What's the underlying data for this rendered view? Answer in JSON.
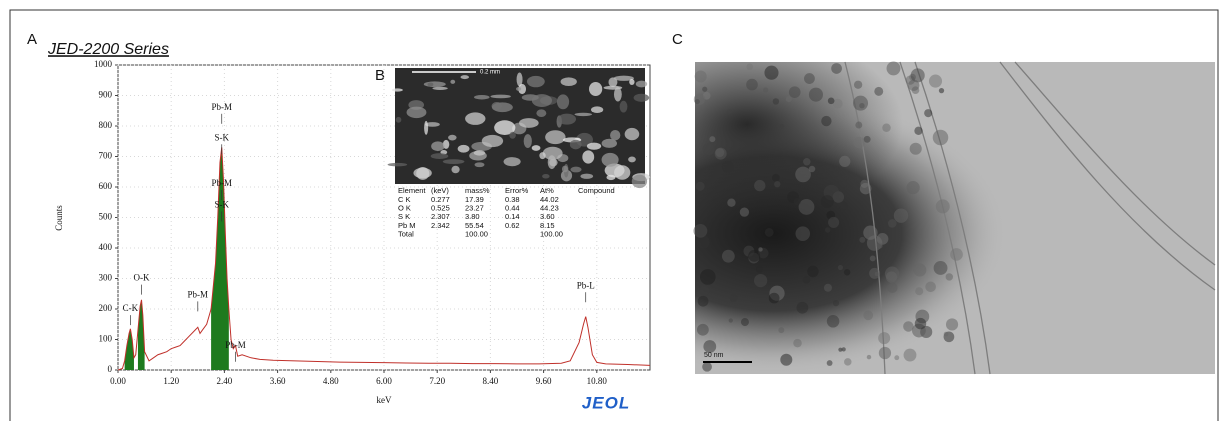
{
  "panels": {
    "a": "A",
    "b": "B",
    "c": "C"
  },
  "chart_data": {
    "type": "line",
    "title": "JED-2200 Series",
    "x_label": "keV",
    "y_label": "Counts",
    "x": [
      0,
      0.1,
      0.15,
      0.2,
      0.25,
      0.28,
      0.32,
      0.36,
      0.4,
      0.45,
      0.5,
      0.53,
      0.56,
      0.6,
      0.7,
      0.8,
      0.9,
      1.0,
      1.1,
      1.2,
      1.3,
      1.4,
      1.5,
      1.6,
      1.7,
      1.8,
      1.85,
      1.9,
      2.0,
      2.1,
      2.2,
      2.25,
      2.3,
      2.34,
      2.38,
      2.42,
      2.46,
      2.5,
      2.55,
      2.6,
      2.65,
      2.7,
      2.8,
      3.0,
      3.2,
      3.5,
      4.0,
      4.5,
      5.0,
      5.5,
      6.0,
      6.5,
      7.0,
      7.5,
      8.0,
      8.5,
      9.0,
      9.5,
      10.0,
      10.2,
      10.4,
      10.5,
      10.55,
      10.6,
      10.7,
      10.8,
      11.0,
      11.5,
      12.0
    ],
    "values": [
      0,
      5,
      30,
      80,
      120,
      135,
      100,
      40,
      50,
      130,
      210,
      230,
      180,
      60,
      30,
      40,
      50,
      55,
      60,
      70,
      75,
      80,
      95,
      110,
      125,
      140,
      120,
      130,
      150,
      200,
      350,
      500,
      680,
      730,
      620,
      450,
      300,
      200,
      100,
      70,
      80,
      45,
      50,
      40,
      35,
      32,
      30,
      28,
      26,
      25,
      24,
      23,
      22,
      22,
      21,
      21,
      20,
      20,
      22,
      30,
      90,
      150,
      175,
      140,
      50,
      25,
      20,
      18,
      15
    ],
    "color": "#c0302a",
    "fill_color": "#1e7a1e",
    "filled_ranges": [
      [
        0.15,
        0.36
      ],
      [
        0.45,
        0.6
      ],
      [
        2.1,
        2.5
      ]
    ],
    "xlim": [
      0,
      12
    ],
    "ylim": [
      0,
      1000
    ],
    "xticks": [
      {
        "value": 0,
        "label": "0.00"
      },
      {
        "value": 1.2,
        "label": "1.20"
      },
      {
        "value": 2.4,
        "label": "2.40"
      },
      {
        "value": 3.6,
        "label": "3.60"
      },
      {
        "value": 4.8,
        "label": "4.80"
      },
      {
        "value": 6,
        "label": "6.00"
      },
      {
        "value": 7.2,
        "label": "7.20"
      },
      {
        "value": 8.4,
        "label": "8.40"
      },
      {
        "value": 9.6,
        "label": "9.60"
      },
      {
        "value": 10.8,
        "label": "10.80"
      }
    ],
    "yticks": [
      0,
      100,
      200,
      300,
      400,
      500,
      600,
      700,
      800,
      900,
      1000
    ],
    "grid": true,
    "annotations": [
      {
        "text": "Pb-M",
        "x": 2.34,
        "y": 840
      },
      {
        "text": "S-K",
        "x": 2.34,
        "y": 740
      },
      {
        "text": "Pb-M",
        "x": 2.34,
        "y": 590
      },
      {
        "text": "S-K",
        "x": 2.34,
        "y": 520
      },
      {
        "text": "O-K",
        "x": 0.53,
        "y": 280
      },
      {
        "text": "C-K",
        "x": 0.28,
        "y": 180
      },
      {
        "text": "Pb-M",
        "x": 1.8,
        "y": 225
      },
      {
        "text": "Pb-M",
        "x": 2.65,
        "y": 60
      },
      {
        "text": "Pb-L",
        "x": 10.55,
        "y": 255
      }
    ]
  },
  "logo": "JEOL",
  "sem_scale": "0.2 mm",
  "inset_table": {
    "header": [
      "Element",
      "(keV)",
      "mass%",
      "Error%",
      "At%",
      "Compound"
    ],
    "rows": [
      [
        "C K",
        "0.277",
        "17.39",
        "0.38",
        "44.02"
      ],
      [
        "O K",
        "0.525",
        "23.27",
        "0.44",
        "44.23"
      ],
      [
        "S K",
        "2.307",
        "3.80",
        "0.14",
        "3.60"
      ],
      [
        "Pb M",
        "2.342",
        "55.54",
        "0.62",
        "8.15"
      ]
    ],
    "total": {
      "label": "Total",
      "mass": "100.00",
      "at": "100.00"
    }
  },
  "tem_scale": "50 nm"
}
